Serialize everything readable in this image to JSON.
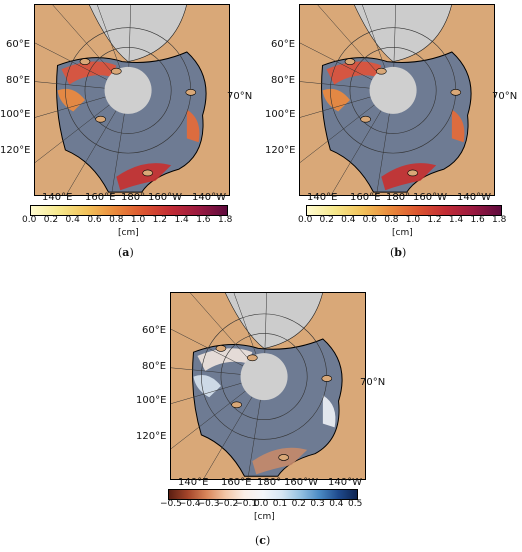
{
  "panels": [
    {
      "id": "a",
      "caption_letter": "a",
      "lon_left_labels": [
        "60°E",
        "80°E",
        "100°E",
        "120°E"
      ],
      "lat_label": "70°N",
      "lon_bottom_labels": [
        "140°E",
        "160°E",
        "180°",
        "160°W",
        "140°W"
      ],
      "colorbar": {
        "ticks": [
          "0.0",
          "0.2",
          "0.4",
          "0.6",
          "0.8",
          "1.0",
          "1.2",
          "1.4",
          "1.6",
          "1.8"
        ],
        "unit": "[cm]",
        "range": [
          0.0,
          1.8
        ],
        "colors": [
          "#fffbd0",
          "#f6e88c",
          "#f2c25a",
          "#ea8a3c",
          "#dc5530",
          "#c22c35",
          "#9a1940",
          "#5e0a3e"
        ]
      }
    },
    {
      "id": "b",
      "caption_letter": "b",
      "lon_left_labels": [
        "60°E",
        "80°E",
        "100°E",
        "120°E"
      ],
      "lat_label": "70°N",
      "lon_bottom_labels": [
        "140°E",
        "160°E",
        "180°",
        "160°W",
        "140°W"
      ],
      "colorbar": {
        "ticks": [
          "0.0",
          "0.2",
          "0.4",
          "0.6",
          "0.8",
          "1.0",
          "1.2",
          "1.4",
          "1.6",
          "1.8"
        ],
        "unit": "[cm]",
        "range": [
          0.0,
          1.8
        ],
        "colors": [
          "#fffbd0",
          "#f6e88c",
          "#f2c25a",
          "#ea8a3c",
          "#dc5530",
          "#c22c35",
          "#9a1940",
          "#5e0a3e"
        ]
      }
    },
    {
      "id": "c",
      "caption_letter": "c",
      "lon_left_labels": [
        "60°E",
        "80°E",
        "100°E",
        "120°E"
      ],
      "lat_label": "70°N",
      "lon_bottom_labels": [
        "140°E",
        "160°E",
        "180°",
        "160°W",
        "140°W"
      ],
      "colorbar": {
        "ticks": [
          "−0.5",
          "−0.4",
          "−0.3",
          "−0.2",
          "−0.1",
          "0.0",
          "0.1",
          "0.2",
          "0.3",
          "0.4",
          "0.5"
        ],
        "unit": "[cm]",
        "range": [
          -0.5,
          0.5
        ],
        "colors": [
          "#5a1e12",
          "#a4452a",
          "#d9865a",
          "#f2c6a6",
          "#fbeee6",
          "#f4f6fa",
          "#d6e6f3",
          "#94c1e1",
          "#4b8bc4",
          "#1f4b8e",
          "#0d2350"
        ]
      }
    }
  ],
  "colors": {
    "land": "#d9a878",
    "ocean": "#6e7b93",
    "pole_hole": "#cfcfcf",
    "sea_ice_cap": "#cccccc",
    "grid": "#333333"
  }
}
